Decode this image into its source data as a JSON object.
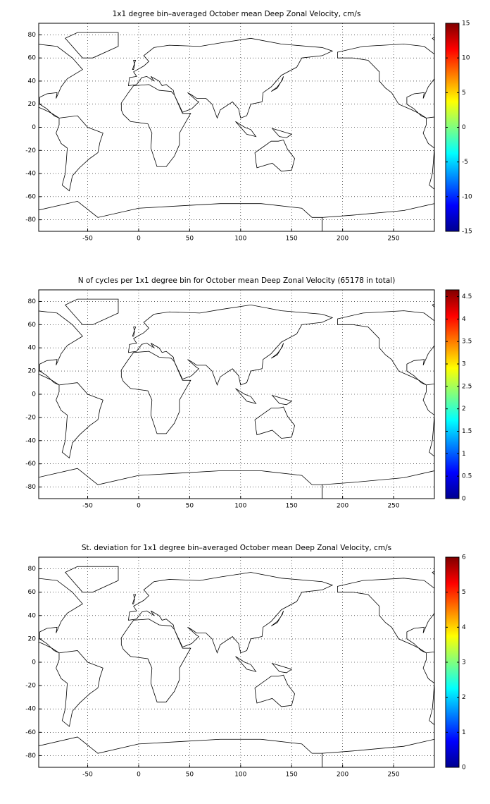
{
  "chart_data": [
    {
      "type": "heatmap",
      "title": "1x1 degree bin–averaged October mean Deep Zonal Velocity, cm/s",
      "xlim": [
        -98,
        290
      ],
      "xticks": [
        -50,
        0,
        50,
        100,
        150,
        200,
        250
      ],
      "ylim": [
        -90,
        90
      ],
      "yticks": [
        -80,
        -60,
        -40,
        -20,
        0,
        20,
        40,
        60,
        80
      ],
      "colormap": "jet",
      "clim": [
        -15,
        15
      ],
      "cticks": [
        -15,
        -10,
        -5,
        0,
        5,
        10,
        15
      ],
      "grid": true
    },
    {
      "type": "heatmap",
      "title": "N of cycles per 1x1 degree bin for October mean Deep Zonal Velocity (65178 in total)",
      "xlim": [
        -98,
        290
      ],
      "xticks": [
        -50,
        0,
        50,
        100,
        150,
        200,
        250
      ],
      "ylim": [
        -90,
        90
      ],
      "yticks": [
        -80,
        -60,
        -40,
        -20,
        0,
        20,
        40,
        60,
        80
      ],
      "colormap": "jet",
      "clim": [
        0,
        4.65
      ],
      "cticks": [
        0,
        0.5,
        1,
        1.5,
        2,
        2.5,
        3,
        3.5,
        4,
        4.5
      ],
      "grid": true
    },
    {
      "type": "heatmap",
      "title": "St. deviation for 1x1 degree bin–averaged October mean Deep Zonal Velocity, cm/s",
      "xlim": [
        -98,
        290
      ],
      "xticks": [
        -50,
        0,
        50,
        100,
        150,
        200,
        250
      ],
      "ylim": [
        -90,
        90
      ],
      "yticks": [
        -80,
        -60,
        -40,
        -20,
        0,
        20,
        40,
        60,
        80
      ],
      "colormap": "jet",
      "clim": [
        0,
        6
      ],
      "cticks": [
        0,
        1,
        2,
        3,
        4,
        5,
        6
      ],
      "grid": true
    }
  ]
}
